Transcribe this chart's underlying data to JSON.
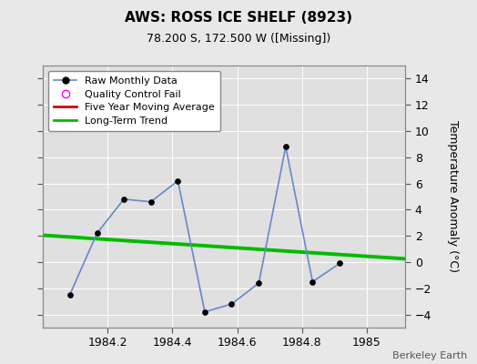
{
  "title": "AWS: ROSS ICE SHELF (8923)",
  "subtitle": "78.200 S, 172.500 W ([Missing])",
  "ylabel": "Temperature Anomaly (°C)",
  "attribution": "Berkeley Earth",
  "background_color": "#e8e8e8",
  "plot_bg_color": "#e0e0e0",
  "raw_x": [
    1984.083,
    1984.167,
    1984.25,
    1984.333,
    1984.417,
    1984.5,
    1984.583,
    1984.667,
    1984.75,
    1984.833,
    1984.917
  ],
  "raw_y": [
    -2.5,
    2.2,
    4.8,
    4.6,
    6.2,
    -3.8,
    -3.2,
    -1.6,
    8.8,
    -1.5,
    -0.1
  ],
  "trend_x": [
    1984.0,
    1985.12
  ],
  "trend_y": [
    2.05,
    0.25
  ],
  "ylim": [
    -5,
    15
  ],
  "yticks": [
    -4,
    -2,
    0,
    2,
    4,
    6,
    8,
    10,
    12,
    14
  ],
  "xlim": [
    1984.0,
    1985.12
  ],
  "raw_line_color": "#6688cc",
  "raw_marker_color": "#000000",
  "trend_color": "#00bb00",
  "ma_color": "#dd0000",
  "qc_color": "#ff00ff",
  "grid_color": "#ffffff",
  "legend_labels": [
    "Raw Monthly Data",
    "Quality Control Fail",
    "Five Year Moving Average",
    "Long-Term Trend"
  ]
}
